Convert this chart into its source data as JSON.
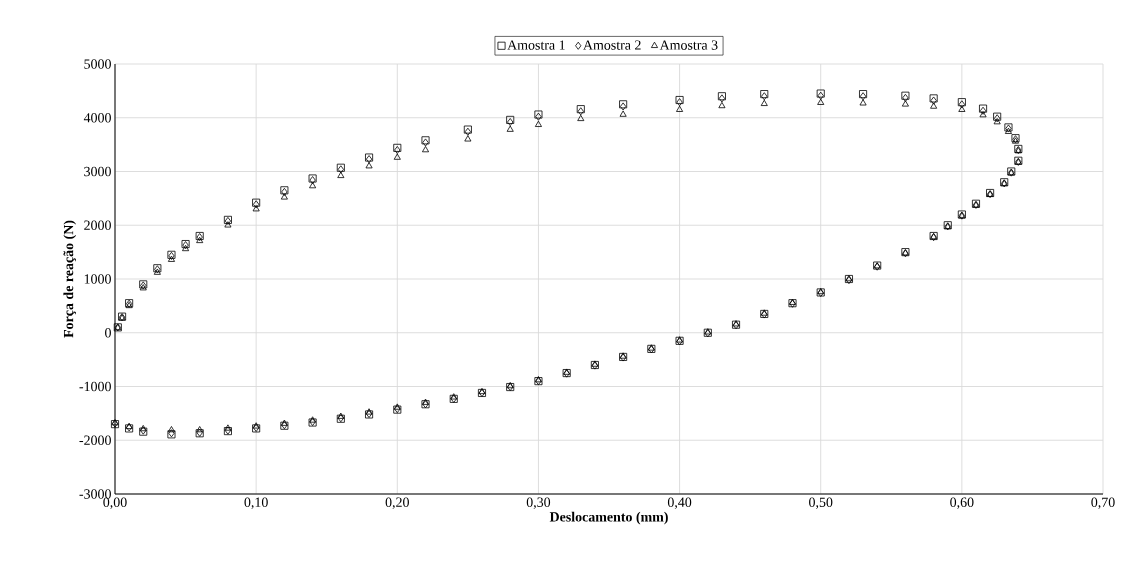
{
  "chart_data": {
    "type": "scatter",
    "xlabel": "Deslocamento (mm)",
    "ylabel": "Força de reação (N)",
    "xlim": [
      0,
      0.7
    ],
    "ylim": [
      -3000,
      5000
    ],
    "xticks": [
      {
        "value": 0,
        "label": "0,00"
      },
      {
        "value": 0.1,
        "label": "0,10"
      },
      {
        "value": 0.2,
        "label": "0,20"
      },
      {
        "value": 0.3,
        "label": "0,30"
      },
      {
        "value": 0.4,
        "label": "0,40"
      },
      {
        "value": 0.5,
        "label": "0,50"
      },
      {
        "value": 0.6,
        "label": "0,60"
      },
      {
        "value": 0.7,
        "label": "0,70"
      }
    ],
    "yticks": [
      -3000,
      -2000,
      -1000,
      0,
      1000,
      2000,
      3000,
      4000,
      5000
    ],
    "grid": true,
    "legend": "top",
    "series": [
      {
        "name": "Amostra 1",
        "color": "#000000",
        "marker": "square",
        "x": [
          0.002,
          0.005,
          0.01,
          0.02,
          0.03,
          0.04,
          0.05,
          0.06,
          0.08,
          0.1,
          0.12,
          0.14,
          0.16,
          0.18,
          0.2,
          0.22,
          0.25,
          0.28,
          0.3,
          0.33,
          0.36,
          0.4,
          0.43,
          0.46,
          0.5,
          0.53,
          0.56,
          0.58,
          0.6,
          0.615,
          0.625,
          0.633,
          0.638,
          0.64,
          0.64,
          0.635,
          0.63,
          0.62,
          0.61,
          0.6,
          0.59,
          0.58,
          0.56,
          0.54,
          0.52,
          0.5,
          0.48,
          0.46,
          0.44,
          0.42,
          0.4,
          0.38,
          0.36,
          0.34,
          0.32,
          0.3,
          0.28,
          0.26,
          0.24,
          0.22,
          0.2,
          0.18,
          0.16,
          0.14,
          0.12,
          0.1,
          0.08,
          0.06,
          0.04,
          0.02,
          0.01,
          0.0
        ],
        "values": [
          100,
          300,
          550,
          900,
          1200,
          1450,
          1650,
          1800,
          2100,
          2420,
          2650,
          2870,
          3070,
          3260,
          3440,
          3580,
          3780,
          3960,
          4060,
          4160,
          4250,
          4330,
          4400,
          4440,
          4450,
          4440,
          4410,
          4360,
          4290,
          4170,
          4020,
          3820,
          3620,
          3420,
          3200,
          3000,
          2800,
          2600,
          2400,
          2200,
          2000,
          1800,
          1500,
          1250,
          1000,
          750,
          550,
          350,
          150,
          0,
          -150,
          -300,
          -450,
          -600,
          -750,
          -900,
          -1010,
          -1120,
          -1230,
          -1330,
          -1430,
          -1520,
          -1600,
          -1670,
          -1730,
          -1780,
          -1830,
          -1870,
          -1890,
          -1840,
          -1780,
          -1700
        ]
      },
      {
        "name": "Amostra 2",
        "color": "#000000",
        "marker": "diamond",
        "x": [
          0.002,
          0.005,
          0.01,
          0.02,
          0.03,
          0.04,
          0.05,
          0.06,
          0.08,
          0.1,
          0.12,
          0.14,
          0.16,
          0.18,
          0.2,
          0.22,
          0.25,
          0.28,
          0.3,
          0.33,
          0.36,
          0.4,
          0.43,
          0.46,
          0.5,
          0.53,
          0.56,
          0.58,
          0.6,
          0.615,
          0.625,
          0.633,
          0.638,
          0.64,
          0.64,
          0.635,
          0.63,
          0.62,
          0.61,
          0.6,
          0.59,
          0.58,
          0.56,
          0.54,
          0.52,
          0.5,
          0.48,
          0.46,
          0.44,
          0.42,
          0.4,
          0.38,
          0.36,
          0.34,
          0.32,
          0.3,
          0.28,
          0.26,
          0.24,
          0.22,
          0.2,
          0.18,
          0.16,
          0.14,
          0.12,
          0.1,
          0.08,
          0.06,
          0.04,
          0.02,
          0.01,
          0.0
        ],
        "values": [
          100,
          290,
          540,
          880,
          1180,
          1430,
          1630,
          1780,
          2080,
          2390,
          2620,
          2840,
          3040,
          3230,
          3400,
          3540,
          3740,
          3920,
          4020,
          4120,
          4210,
          4290,
          4360,
          4400,
          4410,
          4400,
          4370,
          4320,
          4250,
          4130,
          3990,
          3800,
          3600,
          3400,
          3180,
          2980,
          2780,
          2580,
          2380,
          2180,
          1980,
          1780,
          1480,
          1230,
          980,
          740,
          540,
          340,
          140,
          -10,
          -160,
          -310,
          -460,
          -610,
          -760,
          -900,
          -1010,
          -1120,
          -1230,
          -1330,
          -1420,
          -1510,
          -1590,
          -1660,
          -1720,
          -1770,
          -1820,
          -1860,
          -1870,
          -1820,
          -1760,
          -1690
        ]
      },
      {
        "name": "Amostra 3",
        "color": "#000000",
        "marker": "triangle",
        "x": [
          0.002,
          0.005,
          0.01,
          0.02,
          0.03,
          0.04,
          0.05,
          0.06,
          0.08,
          0.1,
          0.12,
          0.14,
          0.16,
          0.18,
          0.2,
          0.22,
          0.25,
          0.28,
          0.3,
          0.33,
          0.36,
          0.4,
          0.43,
          0.46,
          0.5,
          0.53,
          0.56,
          0.58,
          0.6,
          0.615,
          0.625,
          0.633,
          0.638,
          0.64,
          0.64,
          0.635,
          0.63,
          0.62,
          0.61,
          0.6,
          0.59,
          0.58,
          0.56,
          0.54,
          0.52,
          0.5,
          0.48,
          0.46,
          0.44,
          0.42,
          0.4,
          0.38,
          0.36,
          0.34,
          0.32,
          0.3,
          0.28,
          0.26,
          0.24,
          0.22,
          0.2,
          0.18,
          0.16,
          0.14,
          0.12,
          0.1,
          0.08,
          0.06,
          0.04,
          0.02,
          0.01,
          0.0
        ],
        "values": [
          90,
          270,
          500,
          830,
          1120,
          1360,
          1560,
          1710,
          2000,
          2300,
          2520,
          2730,
          2920,
          3100,
          3260,
          3400,
          3600,
          3780,
          3870,
          3980,
          4060,
          4150,
          4220,
          4260,
          4280,
          4270,
          4250,
          4210,
          4150,
          4050,
          3920,
          3740,
          3560,
          3380,
          3170,
          2970,
          2770,
          2570,
          2370,
          2170,
          1970,
          1780,
          1480,
          1240,
          1000,
          760,
          560,
          360,
          160,
          10,
          -140,
          -290,
          -440,
          -590,
          -740,
          -880,
          -990,
          -1100,
          -1200,
          -1300,
          -1390,
          -1480,
          -1560,
          -1630,
          -1690,
          -1740,
          -1780,
          -1810,
          -1810,
          -1790,
          -1750,
          -1680
        ]
      }
    ]
  }
}
